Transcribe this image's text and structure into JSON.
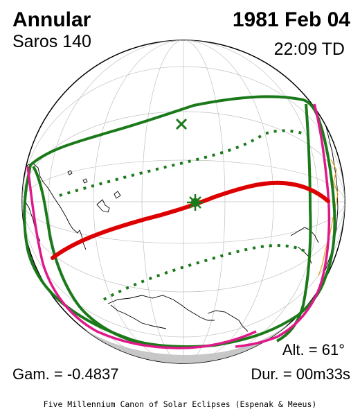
{
  "header": {
    "eclipse_type": "Annular",
    "date": "1981 Feb 04",
    "saros": "Saros 140",
    "time": "22:09 TD"
  },
  "stats": {
    "gamma": "Gam. = -0.4837",
    "altitude": "Alt. = 61°",
    "duration": "Dur. = 00m33s"
  },
  "footer": {
    "credit": "Five Millennium Canon of Solar Eclipses (Espenak & Meeus)"
  },
  "colors": {
    "central_path": "#dd0000",
    "penumbral_limits": "#1a7a1a",
    "rise_set_curve": "#e0198a",
    "coastline": "#000000",
    "night_shading": "#c8c8c8",
    "border": "#e8a020"
  },
  "markers": {
    "greatest_eclipse": "star-icon",
    "subsolar_point": "x-icon"
  }
}
